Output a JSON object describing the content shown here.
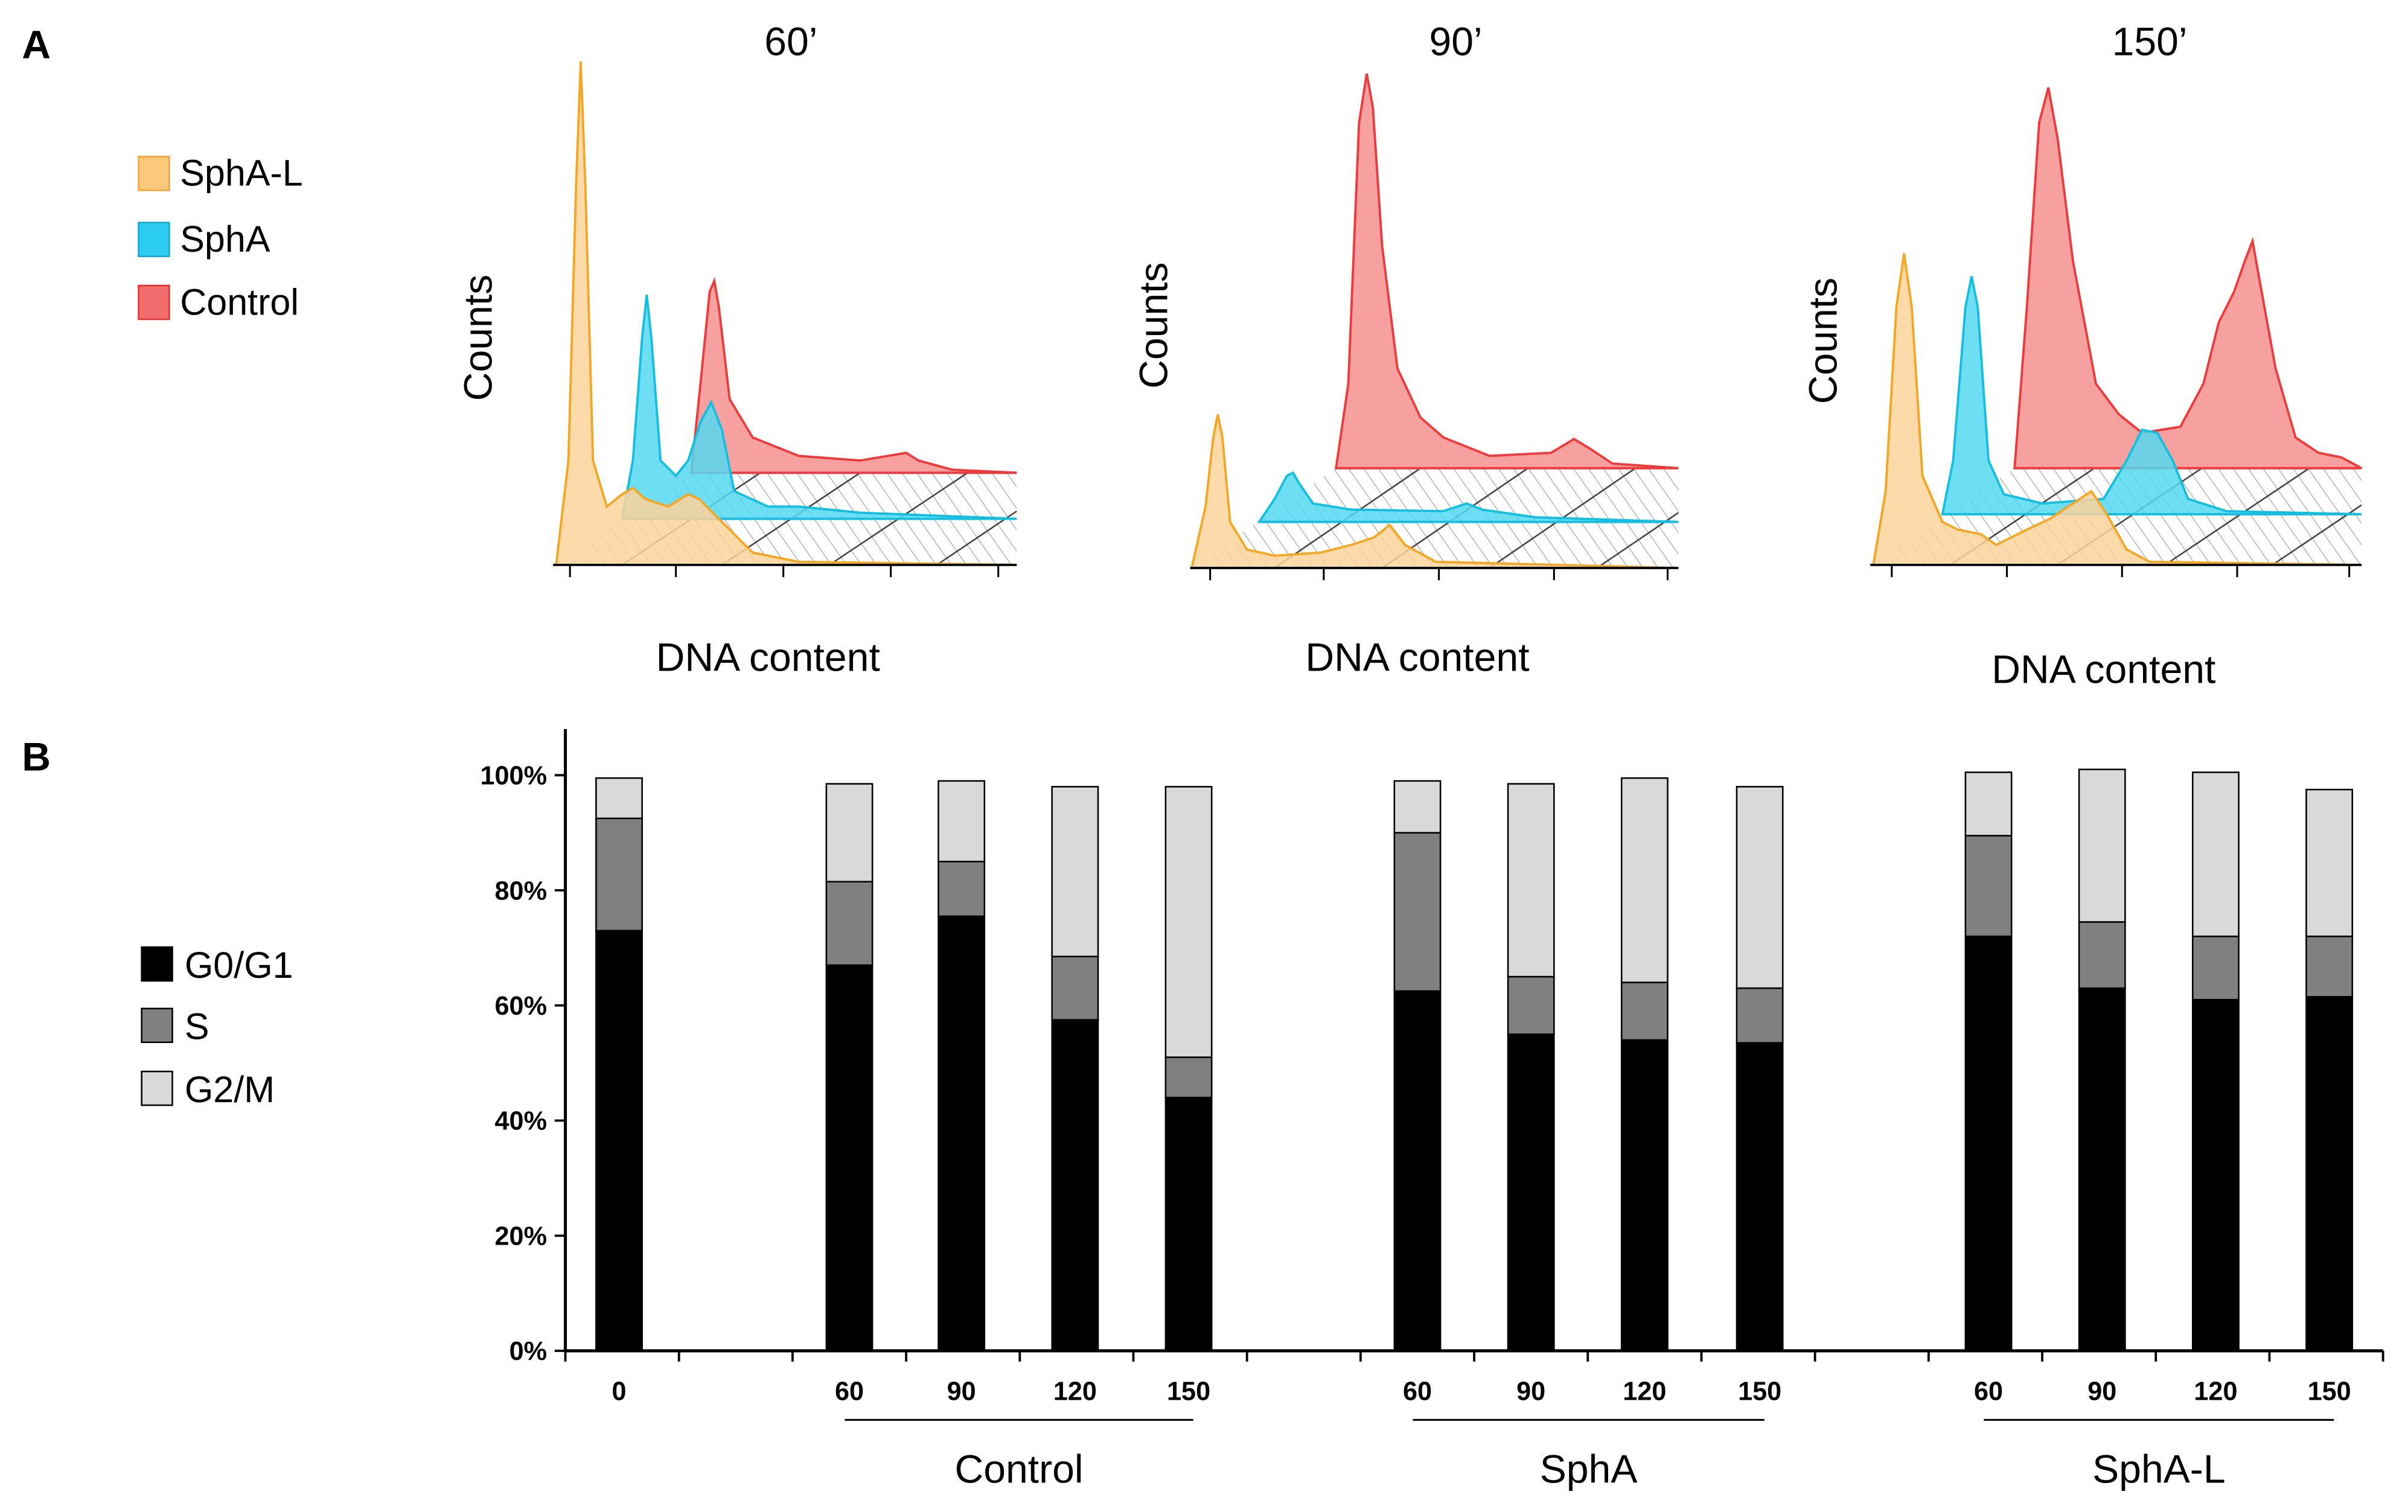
{
  "panel_a": {
    "letter": "A",
    "legend": [
      {
        "label": "SphA-L",
        "color": "#fcc97a"
      },
      {
        "label": "SphA",
        "color": "#2ccdf0"
      },
      {
        "label": "Control",
        "color": "#f26d6d"
      }
    ],
    "panels": [
      {
        "title": "60’",
        "ylabel": "Counts",
        "xlabel": "DNA content"
      },
      {
        "title": "90’",
        "ylabel": "Counts",
        "xlabel": "DNA content"
      },
      {
        "title": "150’",
        "ylabel": "Counts",
        "xlabel": "DNA content"
      }
    ]
  },
  "panel_b": {
    "letter": "B"
  },
  "chart_data": {
    "type": "bar",
    "stacked": true,
    "title": "",
    "xlabel": "",
    "ylabel": "",
    "ylim": [
      0,
      100
    ],
    "yticks": [
      "0%",
      "20%",
      "40%",
      "60%",
      "80%",
      "100%"
    ],
    "categories": [
      "0",
      "60",
      "90",
      "120",
      "150",
      "60",
      "90",
      "120",
      "150",
      "60",
      "90",
      "120",
      "150"
    ],
    "groups": [
      {
        "label": "Control",
        "range": [
          1,
          4
        ]
      },
      {
        "label": "SphA",
        "range": [
          5,
          8
        ]
      },
      {
        "label": "SphA-L",
        "range": [
          9,
          12
        ]
      }
    ],
    "series": [
      {
        "name": "G0/G1",
        "color": "#000000",
        "values": [
          73,
          67,
          75.5,
          57.5,
          44,
          62.5,
          55,
          54,
          53.5,
          72,
          63,
          61,
          61.5
        ]
      },
      {
        "name": "S",
        "color": "#808080",
        "values": [
          19.5,
          14.5,
          9.5,
          11,
          7,
          27.5,
          10,
          10,
          9.5,
          17.5,
          11.5,
          11,
          10.5
        ]
      },
      {
        "name": "G2/M",
        "color": "#d9d9d9",
        "values": [
          7,
          17,
          14,
          29.5,
          47,
          9,
          33.5,
          35.5,
          35,
          11,
          26.5,
          28.5,
          25.5
        ]
      }
    ],
    "legend_position": "left"
  }
}
